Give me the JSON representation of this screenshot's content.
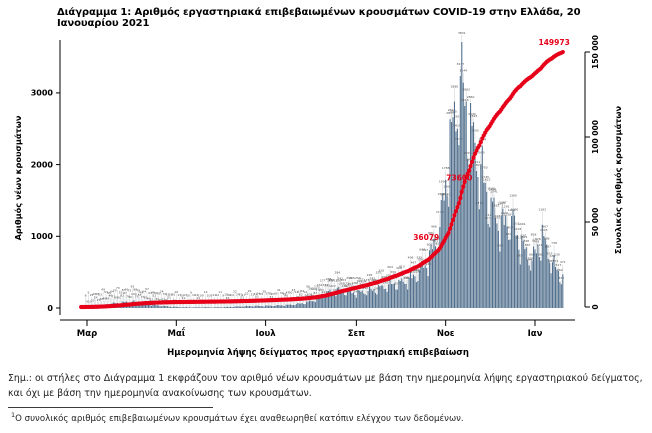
{
  "title": "Διάγραμμα 1: Αριθμός εργαστηριακά επιβεβαιωμένων κρουσμάτων COVID-19 στην Ελλάδα, 20 Ιανουαρίου 2021",
  "note": "Σημ.: οι στήλες στο Διάγραμμα 1 εκφράζουν τον αριθμό νέων κρουσμάτων με βάση την ημερομηνία λήψης εργαστηριακού δείγματος, και όχι με βάση την ημερομηνία ανακοίνωσης των κρουσμάτων.",
  "footnote": {
    "sup": "1",
    "text": "Ο συνολικός αριθμός επιβεβαιωμένων κρουσμάτων έχει αναθεωρηθεί κατόπιν ελέγχου των δεδομένων."
  },
  "colors": {
    "bar": "#53718e",
    "cumulative_line": "#e60019",
    "axis": "#000000",
    "bar_label": "#4a4a4a",
    "leader_line": "#c8cdd2",
    "annotation_red": "#e60019"
  },
  "chart_data": {
    "type": "bar",
    "estimated": true,
    "title": "",
    "xlabel": "Ημερομηνία λήψης δείγματος προς εργαστηριακή επιβεβαίωση",
    "ylabel_left": "Αριθμός νέων κρουσμάτων",
    "ylabel_right": "Συνολικός αριθμός κρουσμάτων",
    "start_date": "2020-02-26",
    "end_date": "2021-01-20",
    "x_ticks": [
      {
        "label": "Μαρ",
        "date": "2020-03-01"
      },
      {
        "label": "Μαΐ",
        "date": "2020-05-01"
      },
      {
        "label": "Ιουλ",
        "date": "2020-07-01"
      },
      {
        "label": "Σεπ",
        "date": "2020-09-01"
      },
      {
        "label": "Νοε",
        "date": "2020-11-01"
      },
      {
        "label": "Ιαν",
        "date": "2021-01-01"
      }
    ],
    "y_left_ticks": [
      {
        "v": 0,
        "label": "0"
      },
      {
        "v": 1000,
        "label": "1000"
      },
      {
        "v": 2000,
        "label": "2000"
      },
      {
        "v": 3000,
        "label": "3000"
      }
    ],
    "y_right_ticks": [
      {
        "v": 0,
        "label": "0"
      },
      {
        "v": 50000,
        "label": "50 000"
      },
      {
        "v": 100000,
        "label": "100 000"
      },
      {
        "v": 150000,
        "label": "150 000"
      }
    ],
    "y_left_range": [
      0,
      3737
    ],
    "y_right_range": [
      0,
      155882
    ],
    "grid": false,
    "legend": "none",
    "weekly_anchors": [
      [
        "2020-02-26",
        3
      ],
      [
        "2020-03-04",
        15
      ],
      [
        "2020-03-11",
        40
      ],
      [
        "2020-03-18",
        65
      ],
      [
        "2020-03-25",
        80
      ],
      [
        "2020-04-01",
        95
      ],
      [
        "2020-04-08",
        65
      ],
      [
        "2020-04-15",
        45
      ],
      [
        "2020-04-22",
        30
      ],
      [
        "2020-04-29",
        18
      ],
      [
        "2020-05-06",
        12
      ],
      [
        "2020-05-13",
        10
      ],
      [
        "2020-05-20",
        12
      ],
      [
        "2020-05-27",
        10
      ],
      [
        "2020-06-03",
        14
      ],
      [
        "2020-06-10",
        20
      ],
      [
        "2020-06-17",
        26
      ],
      [
        "2020-06-24",
        30
      ],
      [
        "2020-07-01",
        32
      ],
      [
        "2020-07-08",
        36
      ],
      [
        "2020-07-15",
        42
      ],
      [
        "2020-07-22",
        55
      ],
      [
        "2020-07-29",
        80
      ],
      [
        "2020-08-05",
        130
      ],
      [
        "2020-08-12",
        220
      ],
      [
        "2020-08-19",
        260
      ],
      [
        "2020-08-26",
        230
      ],
      [
        "2020-09-02",
        220
      ],
      [
        "2020-09-09",
        245
      ],
      [
        "2020-09-16",
        285
      ],
      [
        "2020-09-23",
        330
      ],
      [
        "2020-09-30",
        360
      ],
      [
        "2020-10-07",
        400
      ],
      [
        "2020-10-14",
        520
      ],
      [
        "2020-10-21",
        720
      ],
      [
        "2020-10-28",
        1150
      ],
      [
        "2020-11-04",
        2300
      ],
      [
        "2020-11-11",
        3300
      ],
      [
        "2020-11-18",
        2550
      ],
      [
        "2020-11-25",
        1950
      ],
      [
        "2020-12-02",
        1450
      ],
      [
        "2020-12-09",
        1180
      ],
      [
        "2020-12-16",
        1280
      ],
      [
        "2020-12-23",
        880
      ],
      [
        "2020-12-30",
        680
      ],
      [
        "2021-01-06",
        1020
      ],
      [
        "2021-01-13",
        640
      ],
      [
        "2021-01-20",
        430
      ]
    ],
    "weekday_texture": [
      1.06,
      1.12,
      1.04,
      0.99,
      0.93,
      0.8,
      0.7
    ],
    "cumulative_final": 149973,
    "line_annotations": [
      {
        "label": "36079",
        "date": "2020-10-29",
        "value": 36079
      },
      {
        "label": "73600",
        "date": "2020-11-13",
        "value": 73600
      },
      {
        "label": "149973",
        "date": "2021-01-20",
        "value": 149973
      }
    ]
  }
}
